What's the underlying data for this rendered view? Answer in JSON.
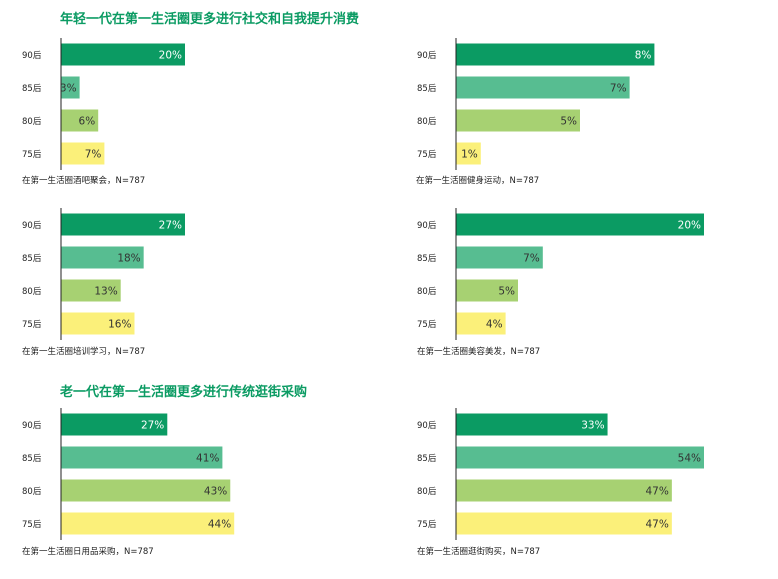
{
  "colors": {
    "title": "#0b9b63",
    "bar_90": "#0b9b63",
    "bar_85": "#57bd91",
    "bar_80": "#a7d172",
    "bar_75": "#fbf07a",
    "axis": "#222222"
  },
  "sections": [
    {
      "title": "年轻一代在第一生活圈更多进行社交和自我提升消费"
    },
    {
      "title": "老一代在第一生活圈更多进行传统逛街采购"
    }
  ],
  "chart_data": [
    {
      "type": "bar",
      "orientation": "horizontal",
      "categories": [
        "90后",
        "85后",
        "80后",
        "75后"
      ],
      "values": [
        20,
        3,
        6,
        7
      ],
      "value_labels": [
        "20%",
        "3%",
        "6%",
        "7%"
      ],
      "xlim": [
        0,
        40
      ],
      "caption": "在第一生活圈酒吧聚会，N=787"
    },
    {
      "type": "bar",
      "orientation": "horizontal",
      "categories": [
        "90后",
        "85后",
        "80后",
        "75后"
      ],
      "values": [
        8,
        7,
        5,
        1
      ],
      "value_labels": [
        "8%",
        "7%",
        "5%",
        "1%"
      ],
      "xlim": [
        0,
        10
      ],
      "caption": "在第一生活圈健身运动，N=787"
    },
    {
      "type": "bar",
      "orientation": "horizontal",
      "categories": [
        "90后",
        "85后",
        "80后",
        "75后"
      ],
      "values": [
        27,
        18,
        13,
        16
      ],
      "value_labels": [
        "27%",
        "18%",
        "13%",
        "16%"
      ],
      "xlim": [
        0,
        54
      ],
      "caption": "在第一生活圈培训学习，N=787"
    },
    {
      "type": "bar",
      "orientation": "horizontal",
      "categories": [
        "90后",
        "85后",
        "80后",
        "75后"
      ],
      "values": [
        20,
        7,
        5,
        4
      ],
      "value_labels": [
        "20%",
        "7%",
        "5%",
        "4%"
      ],
      "xlim": [
        0,
        20
      ],
      "caption": "在第一生活圈美容美发，N=787"
    },
    {
      "type": "bar",
      "orientation": "horizontal",
      "categories": [
        "90后",
        "85后",
        "80后",
        "75后"
      ],
      "values": [
        27,
        41,
        43,
        44
      ],
      "value_labels": [
        "27%",
        "41%",
        "43%",
        "44%"
      ],
      "xlim": [
        0,
        63
      ],
      "caption": "在第一生活圈日用品采购，N=787"
    },
    {
      "type": "bar",
      "orientation": "horizontal",
      "categories": [
        "90后",
        "85后",
        "80后",
        "75后"
      ],
      "values": [
        33,
        54,
        47,
        47
      ],
      "value_labels": [
        "33%",
        "54%",
        "47%",
        "47%"
      ],
      "xlim": [
        0,
        54
      ],
      "caption": "在第一生活圈逛街购买，N=787"
    }
  ]
}
